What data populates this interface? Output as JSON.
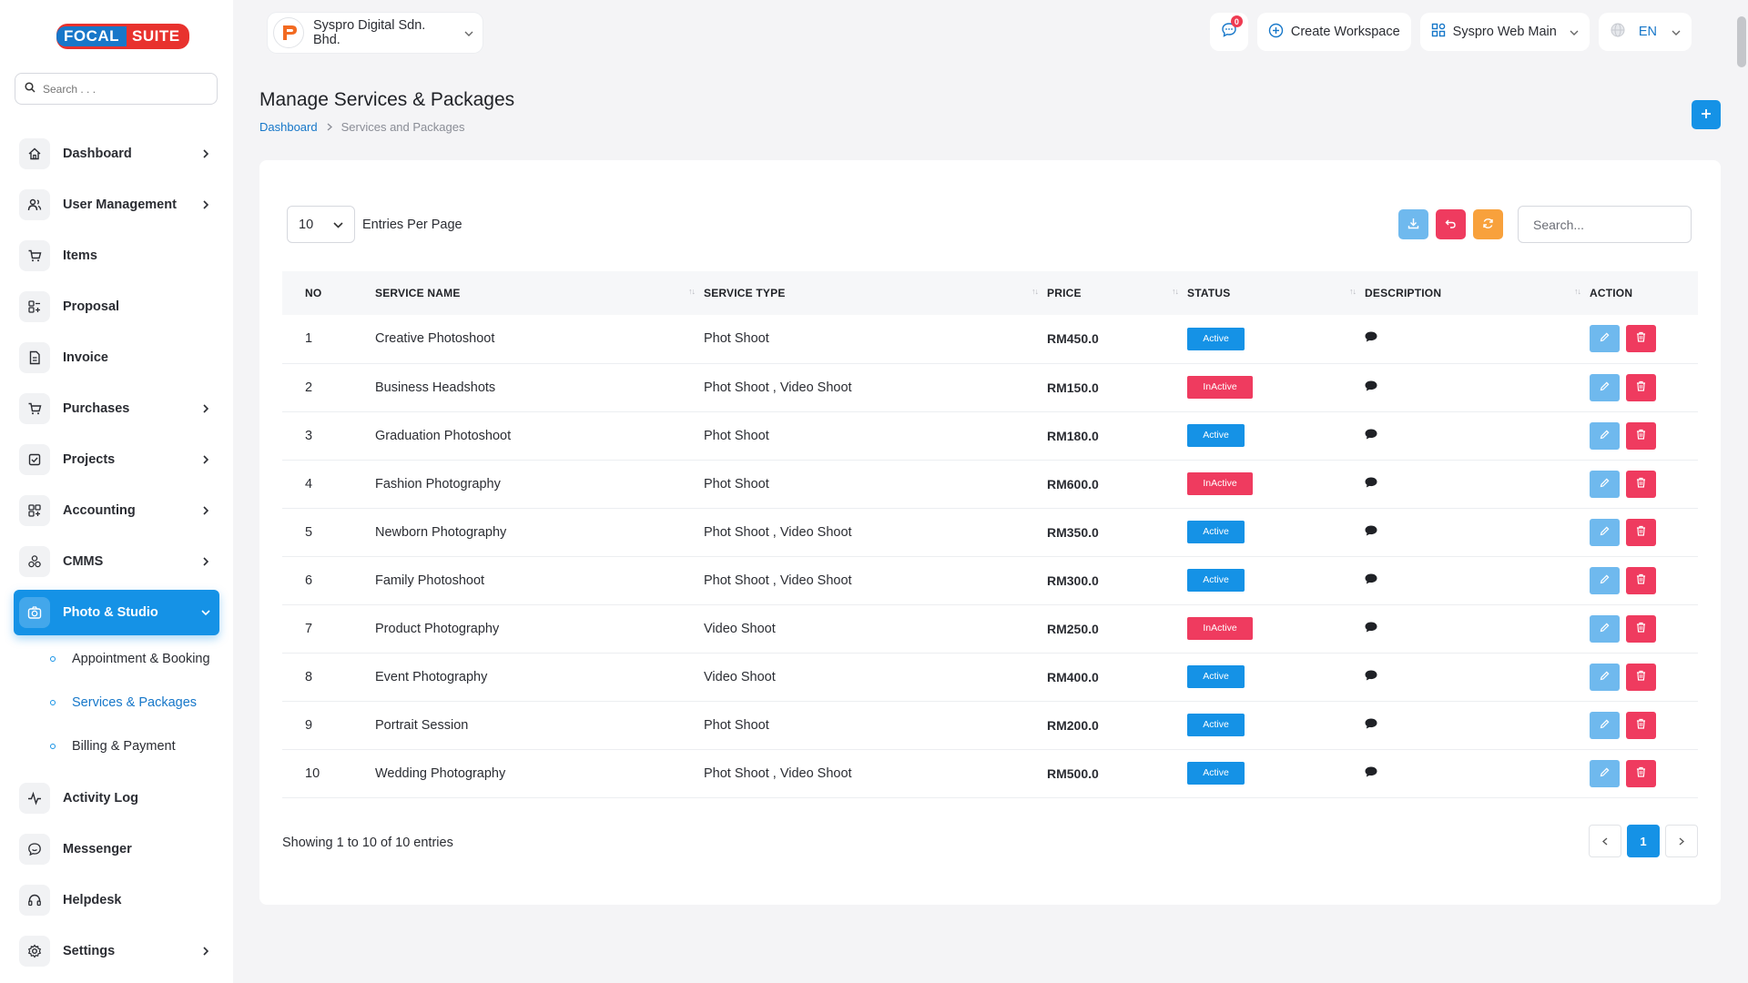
{
  "brand": {
    "word1": "FOCAL",
    "word2": "SUITE"
  },
  "sidebar": {
    "search_placeholder": "Search . . .",
    "items": [
      {
        "label": "Dashboard",
        "icon": "home-icon",
        "has_children": true
      },
      {
        "label": "User Management",
        "icon": "users-icon",
        "has_children": true
      },
      {
        "label": "Items",
        "icon": "cart-icon",
        "has_children": false
      },
      {
        "label": "Proposal",
        "icon": "proposal-icon",
        "has_children": false
      },
      {
        "label": "Invoice",
        "icon": "invoice-icon",
        "has_children": false
      },
      {
        "label": "Purchases",
        "icon": "cart-icon",
        "has_children": true
      },
      {
        "label": "Projects",
        "icon": "checkbox-icon",
        "has_children": true
      },
      {
        "label": "Accounting",
        "icon": "grid-icon",
        "has_children": true
      },
      {
        "label": "CMMS",
        "icon": "cmms-icon",
        "has_children": true
      },
      {
        "label": "Photo & Studio",
        "icon": "camera-icon",
        "has_children": true,
        "active": true
      },
      {
        "label": "Activity Log",
        "icon": "pulse-icon",
        "has_children": false
      },
      {
        "label": "Messenger",
        "icon": "chat-icon",
        "has_children": false
      },
      {
        "label": "Helpdesk",
        "icon": "headset-icon",
        "has_children": false
      },
      {
        "label": "Settings",
        "icon": "gear-icon",
        "has_children": true
      }
    ],
    "photo_studio_sub": [
      {
        "label": "Appointment & Booking"
      },
      {
        "label": "Services & Packages",
        "current": true
      },
      {
        "label": "Billing & Payment"
      }
    ]
  },
  "topbar": {
    "company": "Syspro Digital Sdn. Bhd.",
    "notifications": "0",
    "create_workspace": "Create Workspace",
    "workspace": "Syspro Web Main",
    "language": "EN"
  },
  "page": {
    "title": "Manage Services & Packages",
    "breadcrumb": [
      "Dashboard",
      "Services and Packages"
    ]
  },
  "table": {
    "per_page": "10",
    "per_page_label": "Entries Per Page",
    "search_placeholder": "Search...",
    "columns": [
      "NO",
      "SERVICE NAME",
      "SERVICE TYPE",
      "PRICE",
      "STATUS",
      "DESCRIPTION",
      "ACTION"
    ],
    "rows": [
      {
        "no": "1",
        "name": "Creative Photoshoot",
        "type": "Phot Shoot",
        "price": "RM450.0",
        "status": "Active"
      },
      {
        "no": "2",
        "name": "Business Headshots",
        "type": "Phot Shoot , Video Shoot",
        "price": "RM150.0",
        "status": "InActive"
      },
      {
        "no": "3",
        "name": "Graduation Photoshoot",
        "type": "Phot Shoot",
        "price": "RM180.0",
        "status": "Active"
      },
      {
        "no": "4",
        "name": "Fashion Photography",
        "type": "Phot Shoot",
        "price": "RM600.0",
        "status": "InActive"
      },
      {
        "no": "5",
        "name": "Newborn Photography",
        "type": "Phot Shoot , Video Shoot",
        "price": "RM350.0",
        "status": "Active"
      },
      {
        "no": "6",
        "name": "Family Photoshoot",
        "type": "Phot Shoot , Video Shoot",
        "price": "RM300.0",
        "status": "Active"
      },
      {
        "no": "7",
        "name": "Product Photography",
        "type": "Video Shoot",
        "price": "RM250.0",
        "status": "InActive"
      },
      {
        "no": "8",
        "name": "Event Photography",
        "type": "Video Shoot",
        "price": "RM400.0",
        "status": "Active"
      },
      {
        "no": "9",
        "name": "Portrait Session",
        "type": "Phot Shoot",
        "price": "RM200.0",
        "status": "Active"
      },
      {
        "no": "10",
        "name": "Wedding Photography",
        "type": "Phot Shoot , Video Shoot",
        "price": "RM500.0",
        "status": "Active"
      }
    ],
    "showing": "Showing 1 to 10 of 10 entries",
    "current_page": "1"
  },
  "colors": {
    "primary": "#1592e6",
    "danger": "#ef3b5f",
    "warning": "#f8a13c",
    "info": "#6fb9ee"
  }
}
